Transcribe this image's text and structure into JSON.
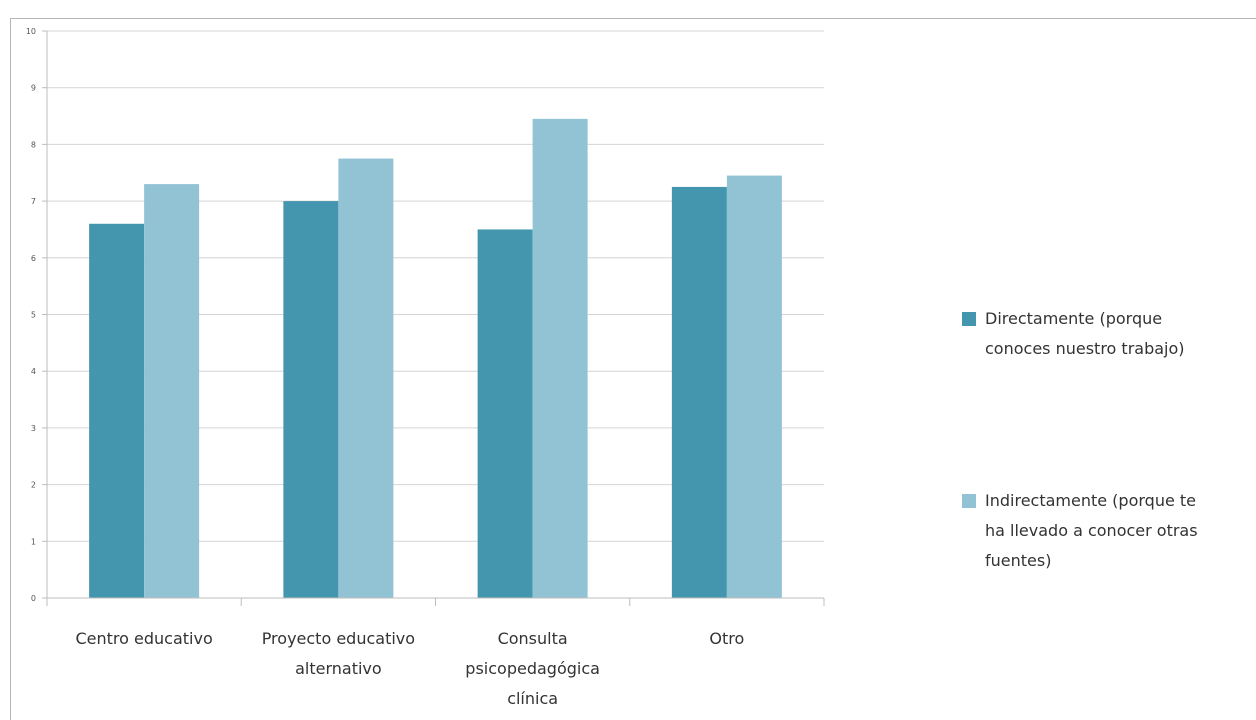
{
  "chart_data": {
    "type": "bar",
    "categories": [
      [
        "Centro educativo"
      ],
      [
        "Proyecto educativo",
        "alternativo"
      ],
      [
        "Consulta",
        "psicopedagógica",
        "clínica"
      ],
      [
        "Otro"
      ]
    ],
    "series": [
      {
        "name": [
          "Directamente (porque",
          "conoces nuestro trabajo)"
        ],
        "color": "#4396ae",
        "values": [
          6.6,
          7.0,
          6.5,
          7.25
        ]
      },
      {
        "name": [
          "Indirectamente (porque te",
          "ha llevado a conocer otras",
          "fuentes)"
        ],
        "color": "#92c3d5",
        "values": [
          7.3,
          7.75,
          8.45,
          7.45
        ]
      }
    ],
    "yticks": [
      "0",
      "1",
      "2",
      "3",
      "4",
      "5",
      "6",
      "7",
      "8",
      "9",
      "10"
    ],
    "ylim": [
      0,
      10
    ],
    "grid": true,
    "legend_position": "right"
  }
}
